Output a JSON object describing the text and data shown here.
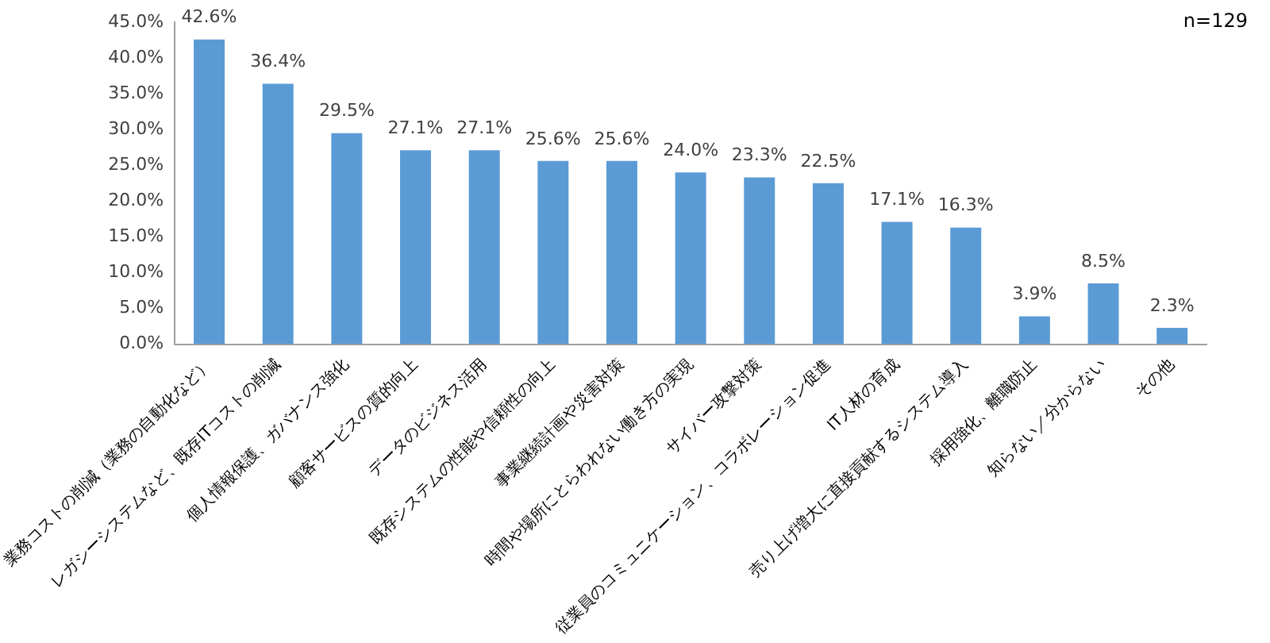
{
  "chart_data": {
    "type": "bar",
    "categories": [
      "業務コストの削減（業務の自動化など）",
      "レガシーシステムなど、既存ITコストの削減",
      "個人情報保護、ガバナンス強化",
      "顧客サービスの質的向上",
      "データのビジネス活用",
      "既存システムの性能や信頼性の向上",
      "事業継続計画や災害対策",
      "時間や場所にとらわれない働き方の実現",
      "サイバー攻撃対策",
      "従業員のコミュニケーション、コラボレーション促進",
      "IT人材の育成",
      "売り上げ増大に直接貢献するシステム導入",
      "採用強化、離職防止",
      "知らない／分からない",
      "その他"
    ],
    "values": [
      42.6,
      36.4,
      29.5,
      27.1,
      27.1,
      25.6,
      25.6,
      24.0,
      23.3,
      22.5,
      17.1,
      16.3,
      3.9,
      8.5,
      2.3
    ],
    "value_labels": [
      "42.6%",
      "36.4%",
      "29.5%",
      "27.1%",
      "27.1%",
      "25.6%",
      "25.6%",
      "24.0%",
      "23.3%",
      "22.5%",
      "17.1%",
      "16.3%",
      "3.9%",
      "8.5%",
      "2.3%"
    ],
    "color": "#5b9bd5",
    "ylim": [
      0,
      45
    ],
    "yticks": [
      {
        "value": 0,
        "label": "0.0%"
      },
      {
        "value": 5,
        "label": "5.0%"
      },
      {
        "value": 10,
        "label": "10.0%"
      },
      {
        "value": 15,
        "label": "15.0%"
      },
      {
        "value": 20,
        "label": "20.0%"
      },
      {
        "value": 25,
        "label": "25.0%"
      },
      {
        "value": 30,
        "label": "30.0%"
      },
      {
        "value": 35,
        "label": "35.0%"
      },
      {
        "value": 40,
        "label": "40.0%"
      },
      {
        "value": 45,
        "label": "45.0%"
      }
    ],
    "grid": false,
    "legend": false,
    "annotations": [
      "n=129"
    ]
  }
}
